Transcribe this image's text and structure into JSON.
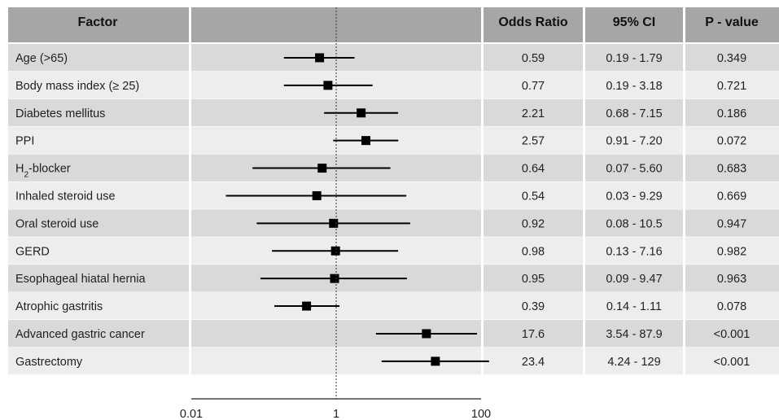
{
  "columns": {
    "factor": "Factor",
    "plot": "",
    "odds_ratio": "Odds Ratio",
    "ci": "95% CI",
    "p_value": "P - value"
  },
  "chart_data": {
    "type": "forest",
    "xscale": "log",
    "xlim": [
      0.01,
      100
    ],
    "ticks": [
      "0.01",
      "1",
      "100"
    ],
    "reference_line": 1,
    "rows": [
      {
        "factor": "Age  (>65)",
        "or": 0.59,
        "lo": 0.19,
        "hi": 1.79,
        "or_text": "0.59",
        "ci_text": "0.19 - 1.79",
        "p_text": "0.349"
      },
      {
        "factor": "Body mass index  (≥ 25)",
        "or": 0.77,
        "lo": 0.19,
        "hi": 3.18,
        "or_text": "0.77",
        "ci_text": "0.19 - 3.18",
        "p_text": "0.721"
      },
      {
        "factor": "Diabetes mellitus",
        "or": 2.21,
        "lo": 0.68,
        "hi": 7.15,
        "or_text": "2.21",
        "ci_text": "0.68 - 7.15",
        "p_text": "0.186"
      },
      {
        "factor": "PPI",
        "or": 2.57,
        "lo": 0.91,
        "hi": 7.2,
        "or_text": "2.57",
        "ci_text": "0.91 - 7.20",
        "p_text": "0.072"
      },
      {
        "factor": "H2-blocker",
        "or": 0.64,
        "lo": 0.07,
        "hi": 5.6,
        "or_text": "0.64",
        "ci_text": "0.07 - 5.60",
        "p_text": "0.683"
      },
      {
        "factor": "Inhaled steroid use",
        "or": 0.54,
        "lo": 0.03,
        "hi": 9.29,
        "or_text": "0.54",
        "ci_text": "0.03 - 9.29",
        "p_text": "0.669"
      },
      {
        "factor": "Oral steroid use",
        "or": 0.92,
        "lo": 0.08,
        "hi": 10.5,
        "or_text": "0.92",
        "ci_text": "0.08 - 10.5",
        "p_text": "0.947"
      },
      {
        "factor": "GERD",
        "or": 0.98,
        "lo": 0.13,
        "hi": 7.16,
        "or_text": "0.98",
        "ci_text": "0.13 - 7.16",
        "p_text": "0.982"
      },
      {
        "factor": "Esophageal hiatal hernia",
        "or": 0.95,
        "lo": 0.09,
        "hi": 9.47,
        "or_text": "0.95",
        "ci_text": "0.09 - 9.47",
        "p_text": "0.963"
      },
      {
        "factor": "Atrophic gastritis",
        "or": 0.39,
        "lo": 0.14,
        "hi": 1.11,
        "or_text": "0.39",
        "ci_text": "0.14 - 1.11",
        "p_text": "0.078"
      },
      {
        "factor": "Advanced gastric cancer",
        "or": 17.6,
        "lo": 3.54,
        "hi": 87.9,
        "or_text": "17.6",
        "ci_text": "3.54 - 87.9",
        "p_text": "<0.001"
      },
      {
        "factor": "Gastrectomy",
        "or": 23.4,
        "lo": 4.24,
        "hi": 129,
        "or_text": "23.4",
        "ci_text": "4.24 - 129",
        "p_text": "<0.001"
      }
    ]
  },
  "colors": {
    "header": "#a6a6a6",
    "row_dark": "#d9d9d9",
    "row_light": "#ededed",
    "marker": "#000000"
  }
}
